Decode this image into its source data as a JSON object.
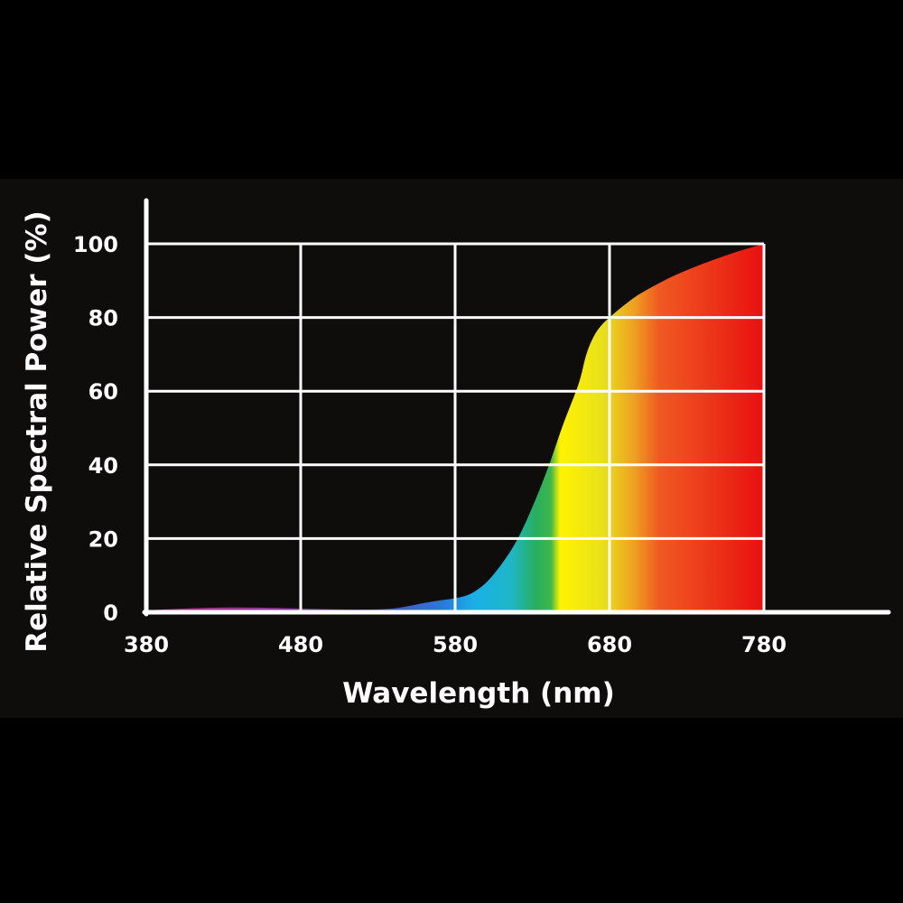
{
  "chart_data": {
    "type": "area",
    "xlabel": "Wavelength (nm)",
    "ylabel": "Relative Spectral Power (%)",
    "xlim": [
      380,
      780
    ],
    "ylim": [
      0,
      100
    ],
    "x_ticks": [
      "380",
      "480",
      "580",
      "680",
      "780"
    ],
    "y_ticks": [
      "0",
      "20",
      "40",
      "60",
      "80",
      "100"
    ],
    "grid": true,
    "legend": "none",
    "series": [
      {
        "x": [
          380,
          400,
          420,
          440,
          460,
          480,
          500,
          520,
          540,
          560,
          570,
          580,
          590,
          600,
          610,
          620,
          630,
          640,
          650,
          660,
          665,
          670,
          675,
          680,
          690,
          700,
          720,
          740,
          760,
          780
        ],
        "values": [
          0.5,
          0.9,
          1.2,
          1.3,
          1.2,
          1.0,
          0.8,
          0.7,
          1.0,
          2.5,
          3.2,
          3.8,
          5.0,
          8.0,
          13.0,
          19.5,
          28.5,
          39.0,
          51.0,
          62.0,
          70.0,
          75.0,
          78.0,
          80.0,
          83.5,
          86.5,
          91.0,
          94.5,
          97.5,
          100.0
        ]
      }
    ],
    "colors": {
      "background": "#000000",
      "panel": "#0f0c0c",
      "grid": "#ffffff",
      "spectrum": [
        "#b5306e",
        "#6a3fa8",
        "#3d56c8",
        "#1aa7e6",
        "#18b9e0",
        "#27ae60",
        "#3fb64a",
        "#fff200",
        "#e8e01c",
        "#eea020",
        "#f05a22",
        "#e81010"
      ]
    }
  }
}
